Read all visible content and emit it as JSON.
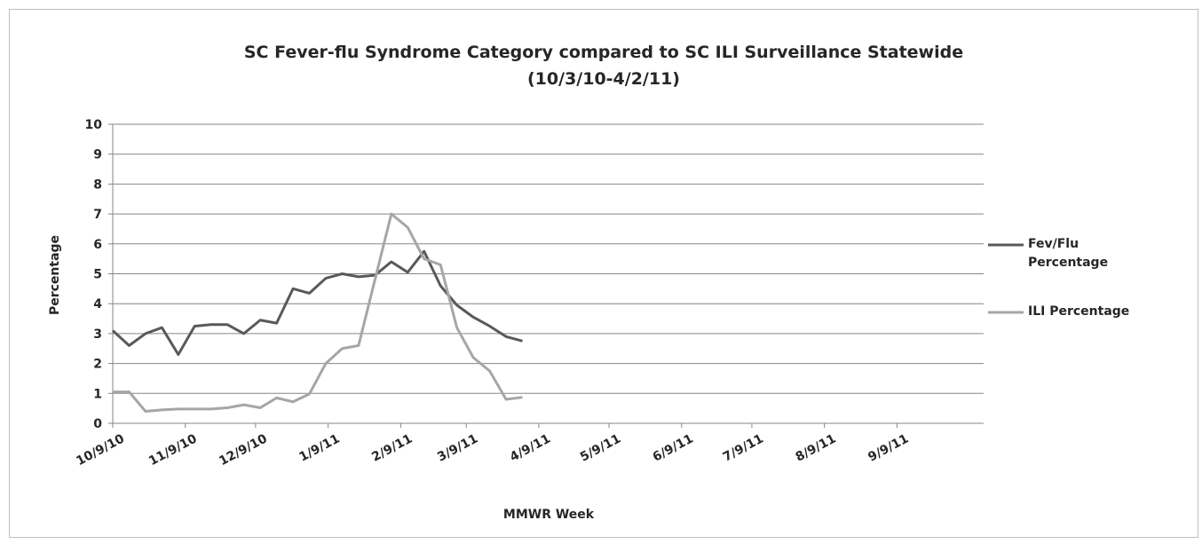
{
  "chart_data": {
    "type": "line",
    "title": "SC Fever-flu Syndrome Category compared to SC ILI Surveillance Statewide (10/3/10-4/2/11)",
    "x_label": "MMWR Week",
    "y_label": "Percentage",
    "x": [
      "2010-10-09",
      "2010-10-16",
      "2010-10-23",
      "2010-10-30",
      "2010-11-06",
      "2010-11-13",
      "2010-11-20",
      "2010-11-27",
      "2010-12-04",
      "2010-12-11",
      "2010-12-18",
      "2010-12-25",
      "2011-01-01",
      "2011-01-08",
      "2011-01-15",
      "2011-01-22",
      "2011-01-29",
      "2011-02-05",
      "2011-02-12",
      "2011-02-19",
      "2011-02-26",
      "2011-03-05",
      "2011-03-12",
      "2011-03-19",
      "2011-03-26",
      "2011-04-02"
    ],
    "series": [
      {
        "name": "Fev/Flu Percentage",
        "color": "#595959",
        "values": [
          3.1,
          2.6,
          3.0,
          3.2,
          2.3,
          3.25,
          3.3,
          3.3,
          3.0,
          3.45,
          3.35,
          4.5,
          4.35,
          4.85,
          5.0,
          4.9,
          4.95,
          5.4,
          5.05,
          5.75,
          4.6,
          3.95,
          3.55,
          3.25,
          2.9,
          2.75
        ]
      },
      {
        "name": "ILI Percentage",
        "color": "#a6a6a6",
        "values": [
          1.05,
          1.05,
          0.4,
          0.45,
          0.48,
          0.48,
          0.48,
          0.52,
          0.62,
          0.52,
          0.85,
          0.72,
          0.98,
          2.0,
          2.5,
          2.6,
          4.8,
          7.0,
          6.55,
          5.5,
          5.3,
          3.2,
          2.2,
          1.75,
          0.8,
          0.87
        ]
      }
    ],
    "xlim": [
      "2010-10-09",
      "2011-10-16"
    ],
    "xticks": [
      {
        "value": "2010-10-09",
        "label": "10/9/10"
      },
      {
        "value": "2010-11-09",
        "label": "11/9/10"
      },
      {
        "value": "2010-12-09",
        "label": "12/9/10"
      },
      {
        "value": "2011-01-09",
        "label": "1/9/11"
      },
      {
        "value": "2011-02-09",
        "label": "2/9/11"
      },
      {
        "value": "2011-03-09",
        "label": "3/9/11"
      },
      {
        "value": "2011-04-09",
        "label": "4/9/11"
      },
      {
        "value": "2011-05-09",
        "label": "5/9/11"
      },
      {
        "value": "2011-06-09",
        "label": "6/9/11"
      },
      {
        "value": "2011-07-09",
        "label": "7/9/11"
      },
      {
        "value": "2011-08-09",
        "label": "8/9/11"
      },
      {
        "value": "2011-09-09",
        "label": "9/9/11"
      }
    ],
    "ylim": [
      0,
      10
    ],
    "yticks": [
      0,
      1,
      2,
      3,
      4,
      5,
      6,
      7,
      8,
      9,
      10
    ],
    "grid": true,
    "legend": "right"
  }
}
